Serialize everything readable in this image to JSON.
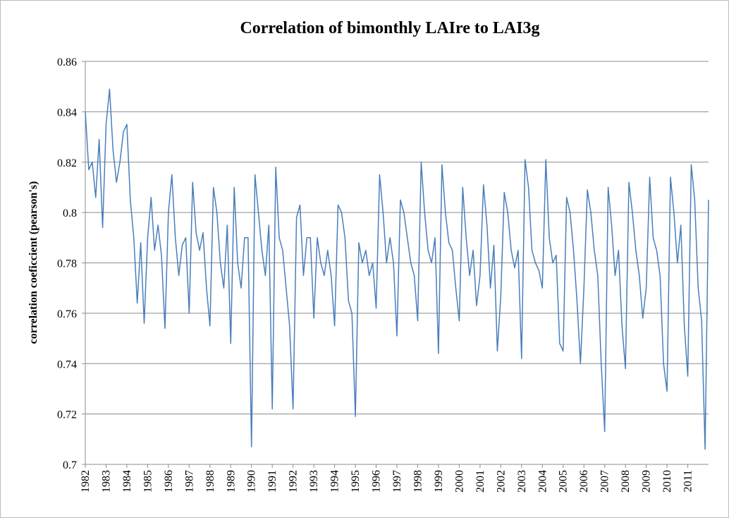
{
  "chart_data": {
    "type": "line",
    "title": "Correlation of bimonthly LAIre to LAI3g",
    "y_label": "correlation coeficcient (pearson's)",
    "categories": [
      "1982",
      null,
      null,
      null,
      null,
      null,
      "1983",
      null,
      null,
      null,
      null,
      null,
      "1984",
      null,
      null,
      null,
      null,
      null,
      "1985",
      null,
      null,
      null,
      null,
      null,
      "1986",
      null,
      null,
      null,
      null,
      null,
      "1987",
      null,
      null,
      null,
      null,
      null,
      "1988",
      null,
      null,
      null,
      null,
      null,
      "1989",
      null,
      null,
      null,
      null,
      null,
      "1990",
      null,
      null,
      null,
      null,
      null,
      "1991",
      null,
      null,
      null,
      null,
      null,
      "1992",
      null,
      null,
      null,
      null,
      null,
      "1993",
      null,
      null,
      null,
      null,
      null,
      "1994",
      null,
      null,
      null,
      null,
      null,
      "1995",
      null,
      null,
      null,
      null,
      null,
      "1996",
      null,
      null,
      null,
      null,
      null,
      "1997",
      null,
      null,
      null,
      null,
      null,
      "1998",
      null,
      null,
      null,
      null,
      null,
      "1999",
      null,
      null,
      null,
      null,
      null,
      "2000",
      null,
      null,
      null,
      null,
      null,
      "2001",
      null,
      null,
      null,
      null,
      null,
      "2002",
      null,
      null,
      null,
      null,
      null,
      "2003",
      null,
      null,
      null,
      null,
      null,
      "2004",
      null,
      null,
      null,
      null,
      null,
      "2005",
      null,
      null,
      null,
      null,
      null,
      "2006",
      null,
      null,
      null,
      null,
      null,
      "2007",
      null,
      null,
      null,
      null,
      null,
      "2008",
      null,
      null,
      null,
      null,
      null,
      "2009",
      null,
      null,
      null,
      null,
      null,
      "2010",
      null,
      null,
      null,
      null,
      null,
      "2011",
      null,
      null,
      null,
      null,
      null,
      null
    ],
    "values": [
      0.84,
      0.817,
      0.82,
      0.806,
      0.829,
      0.794,
      0.835,
      0.849,
      0.825,
      0.812,
      0.82,
      0.832,
      0.835,
      0.805,
      0.79,
      0.764,
      0.788,
      0.756,
      0.79,
      0.806,
      0.785,
      0.795,
      0.783,
      0.754,
      0.8,
      0.815,
      0.79,
      0.775,
      0.787,
      0.79,
      0.76,
      0.812,
      0.792,
      0.785,
      0.792,
      0.77,
      0.755,
      0.81,
      0.8,
      0.78,
      0.77,
      0.795,
      0.748,
      0.81,
      0.78,
      0.77,
      0.79,
      0.79,
      0.707,
      0.815,
      0.8,
      0.785,
      0.775,
      0.795,
      0.722,
      0.818,
      0.79,
      0.785,
      0.77,
      0.755,
      0.722,
      0.798,
      0.803,
      0.775,
      0.79,
      0.79,
      0.758,
      0.79,
      0.78,
      0.775,
      0.785,
      0.775,
      0.755,
      0.803,
      0.8,
      0.79,
      0.765,
      0.76,
      0.719,
      0.788,
      0.78,
      0.785,
      0.775,
      0.78,
      0.762,
      0.815,
      0.8,
      0.78,
      0.79,
      0.78,
      0.751,
      0.805,
      0.8,
      0.79,
      0.78,
      0.775,
      0.757,
      0.82,
      0.8,
      0.785,
      0.78,
      0.79,
      0.744,
      0.819,
      0.8,
      0.788,
      0.785,
      0.77,
      0.757,
      0.81,
      0.79,
      0.775,
      0.785,
      0.763,
      0.775,
      0.811,
      0.795,
      0.77,
      0.787,
      0.745,
      0.767,
      0.808,
      0.8,
      0.785,
      0.778,
      0.785,
      0.742,
      0.821,
      0.81,
      0.785,
      0.78,
      0.777,
      0.77,
      0.821,
      0.79,
      0.78,
      0.783,
      0.748,
      0.745,
      0.806,
      0.8,
      0.785,
      0.765,
      0.74,
      0.77,
      0.809,
      0.8,
      0.785,
      0.775,
      0.74,
      0.713,
      0.81,
      0.795,
      0.775,
      0.785,
      0.755,
      0.738,
      0.812,
      0.8,
      0.785,
      0.775,
      0.758,
      0.77,
      0.814,
      0.79,
      0.785,
      0.775,
      0.74,
      0.729,
      0.814,
      0.8,
      0.78,
      0.795,
      0.755,
      0.735,
      0.819,
      0.805,
      0.77,
      0.757,
      0.706,
      0.805
    ],
    "color": "#4a7ebb",
    "ylim": [
      0.7,
      0.86
    ],
    "yticks": [
      0.7,
      0.72,
      0.74,
      0.76,
      0.78,
      0.8,
      0.82,
      0.84,
      0.86
    ],
    "grid": true
  }
}
